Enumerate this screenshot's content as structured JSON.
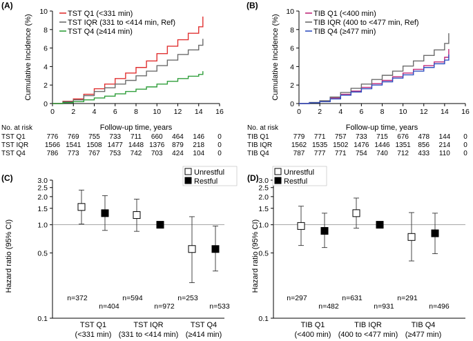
{
  "chart_data": [
    {
      "panel": "(A)",
      "type": "line",
      "title": "",
      "xlabel": "Follow-up time, years",
      "ylabel": "Cumulative Incidence (%)",
      "xlim": [
        0,
        16
      ],
      "ylim": [
        0,
        10
      ],
      "xticks": [
        0,
        2,
        4,
        6,
        8,
        10,
        12,
        14,
        16
      ],
      "yticks": [
        0,
        2,
        4,
        6,
        8,
        10
      ],
      "legend_position": "top-left",
      "series": [
        {
          "name": "TST Q1 (<331 min)",
          "color": "#e03030",
          "x": [
            0,
            1,
            2,
            3,
            4,
            5,
            6,
            7,
            8,
            9,
            10,
            11,
            12,
            13,
            14,
            14.4
          ],
          "y": [
            0,
            0.25,
            0.5,
            1.0,
            1.6,
            2.1,
            2.7,
            3.3,
            3.9,
            4.6,
            5.4,
            6.2,
            6.9,
            7.6,
            8.3,
            9.4
          ]
        },
        {
          "name": "TST IQR (331 to <414 min, Ref)",
          "color": "#6b6b6b",
          "x": [
            0,
            1,
            2,
            3,
            4,
            5,
            6,
            7,
            8,
            9,
            10,
            11,
            12,
            13,
            14,
            14.4
          ],
          "y": [
            0,
            0.2,
            0.4,
            0.85,
            1.3,
            1.7,
            2.1,
            2.5,
            3.0,
            3.5,
            4.1,
            4.7,
            5.3,
            5.8,
            6.3,
            7.0
          ]
        },
        {
          "name": "TST Q4 (≥414 min)",
          "color": "#2f9e3a",
          "x": [
            0,
            1,
            2,
            3,
            4,
            5,
            6,
            7,
            8,
            9,
            10,
            11,
            12,
            13,
            14,
            14.4
          ],
          "y": [
            0,
            0.1,
            0.2,
            0.4,
            0.6,
            0.8,
            1.05,
            1.3,
            1.55,
            1.8,
            2.1,
            2.4,
            2.7,
            2.95,
            3.15,
            3.5
          ]
        }
      ],
      "risk_table": {
        "header": "No. at risk",
        "rows": [
          {
            "label": "TST Q1",
            "values": [
              "776",
              "769",
              "755",
              "733",
              "711",
              "660",
              "464",
              "146",
              "0"
            ]
          },
          {
            "label": "TST IQR",
            "values": [
              "1566",
              "1541",
              "1508",
              "1477",
              "1448",
              "1376",
              "879",
              "218",
              "0"
            ]
          },
          {
            "label": "TST Q4",
            "values": [
              "786",
              "773",
              "767",
              "753",
              "742",
              "703",
              "424",
              "104",
              "0"
            ]
          }
        ]
      }
    },
    {
      "panel": "(B)",
      "type": "line",
      "title": "",
      "xlabel": "Follow-up time, years",
      "ylabel": "Cumulative Incidence (%)",
      "xlim": [
        0,
        16
      ],
      "ylim": [
        0,
        10
      ],
      "xticks": [
        0,
        2,
        4,
        6,
        8,
        10,
        12,
        14,
        16
      ],
      "yticks": [
        0,
        2,
        4,
        6,
        8,
        10
      ],
      "legend_position": "top-left",
      "series": [
        {
          "name": "TIB Q1 (<400 min)",
          "color": "#c0287a",
          "x": [
            0,
            1,
            2,
            3,
            4,
            5,
            6,
            7,
            8,
            9,
            10,
            11,
            12,
            13,
            14,
            14.4
          ],
          "y": [
            0,
            0.1,
            0.25,
            0.6,
            1.0,
            1.35,
            1.75,
            2.15,
            2.5,
            2.9,
            3.3,
            3.7,
            4.1,
            4.5,
            5.0,
            5.9
          ]
        },
        {
          "name": "TIB IQR (400 to <477 min, Ref)",
          "color": "#6b6b6b",
          "x": [
            0,
            1,
            2,
            3,
            4,
            5,
            6,
            7,
            8,
            9,
            10,
            11,
            12,
            13,
            14,
            14.4
          ],
          "y": [
            0,
            0.12,
            0.3,
            0.7,
            1.2,
            1.65,
            2.1,
            2.6,
            3.05,
            3.5,
            4.05,
            4.6,
            5.2,
            5.8,
            6.5,
            7.6
          ]
        },
        {
          "name": "TIB Q4 (≥477 min)",
          "color": "#2f4fc0",
          "x": [
            0,
            1,
            2,
            3,
            4,
            5,
            6,
            7,
            8,
            9,
            10,
            11,
            12,
            13,
            14,
            14.4
          ],
          "y": [
            0,
            0.08,
            0.2,
            0.5,
            0.9,
            1.25,
            1.6,
            2.0,
            2.35,
            2.75,
            3.1,
            3.5,
            3.9,
            4.3,
            4.7,
            5.3
          ]
        }
      ],
      "risk_table": {
        "header": "No. at risk",
        "rows": [
          {
            "label": "TIB Q1",
            "values": [
              "779",
              "771",
              "757",
              "733",
              "715",
              "676",
              "478",
              "144",
              "0"
            ]
          },
          {
            "label": "TIB IQR",
            "values": [
              "1562",
              "1535",
              "1502",
              "1476",
              "1446",
              "1351",
              "856",
              "214",
              "0"
            ]
          },
          {
            "label": "TIB Q4",
            "values": [
              "787",
              "777",
              "771",
              "754",
              "740",
              "712",
              "433",
              "110",
              "0"
            ]
          }
        ]
      }
    },
    {
      "panel": "(C)",
      "type": "scatter",
      "title": "",
      "ylabel": "Hazard ratio (95% CI)",
      "yscale": "log",
      "ylim": [
        0.1,
        3.0
      ],
      "yticks": [
        "0.1",
        "0.5",
        "1.0",
        "1.5",
        "2.0",
        "2.5",
        "3.0"
      ],
      "reference_line": 1.0,
      "legend_position": "top-right",
      "legend": [
        {
          "label": "Unrestful",
          "marker": "open-square"
        },
        {
          "label": "Restful",
          "marker": "filled-square"
        }
      ],
      "groups": [
        {
          "label_line1": "TST Q1",
          "label_line2": "(<331 min)",
          "points": [
            {
              "series": "Unrestful",
              "hr": 1.55,
              "lo": 1.02,
              "hi": 2.35,
              "n": "n=372"
            },
            {
              "series": "Restful",
              "hr": 1.33,
              "lo": 0.87,
              "hi": 2.05,
              "n": "n=404"
            }
          ]
        },
        {
          "label_line1": "TST IQR",
          "label_line2": "(331 to <414 min)",
          "points": [
            {
              "series": "Unrestful",
              "hr": 1.27,
              "lo": 0.85,
              "hi": 1.88,
              "n": "n=594"
            },
            {
              "series": "Restful",
              "hr": 1.0,
              "lo": null,
              "hi": null,
              "n": "n=972"
            }
          ]
        },
        {
          "label_line1": "TST Q4",
          "label_line2": "(≥414 min)",
          "points": [
            {
              "series": "Unrestful",
              "hr": 0.55,
              "lo": 0.24,
              "hi": 1.22,
              "n": "n=253"
            },
            {
              "series": "Restful",
              "hr": 0.55,
              "lo": 0.32,
              "hi": 0.97,
              "n": "n=533"
            }
          ]
        }
      ]
    },
    {
      "panel": "(D)",
      "type": "scatter",
      "title": "",
      "ylabel": "Hazard ratio (95% CI)",
      "yscale": "log",
      "ylim": [
        0.1,
        3.0
      ],
      "yticks": [
        "0.1",
        "0.5",
        "1.0",
        "1.5",
        "2.0",
        "2.5",
        "3.0"
      ],
      "reference_line": 1.0,
      "legend_position": "top-left",
      "legend": [
        {
          "label": "Unrestful",
          "marker": "open-square"
        },
        {
          "label": "Restful",
          "marker": "filled-square"
        }
      ],
      "groups": [
        {
          "label_line1": "TIB Q1",
          "label_line2": "(<400 min)",
          "points": [
            {
              "series": "Unrestful",
              "hr": 0.97,
              "lo": 0.6,
              "hi": 1.58,
              "n": "n=297"
            },
            {
              "series": "Restful",
              "hr": 0.86,
              "lo": 0.57,
              "hi": 1.33,
              "n": "n=482"
            }
          ]
        },
        {
          "label_line1": "TIB IQR",
          "label_line2": "(400 to <477 min)",
          "points": [
            {
              "series": "Unrestful",
              "hr": 1.33,
              "lo": 0.92,
              "hi": 1.93,
              "n": "n=631"
            },
            {
              "series": "Restful",
              "hr": 1.0,
              "lo": null,
              "hi": null,
              "n": "n=931"
            }
          ]
        },
        {
          "label_line1": "TIB Q4",
          "label_line2": "(≥477 min)",
          "points": [
            {
              "series": "Unrestful",
              "hr": 0.74,
              "lo": 0.41,
              "hi": 1.35,
              "n": "n=291"
            },
            {
              "series": "Restful",
              "hr": 0.81,
              "lo": 0.49,
              "hi": 1.33,
              "n": "n=496"
            }
          ]
        }
      ]
    }
  ]
}
